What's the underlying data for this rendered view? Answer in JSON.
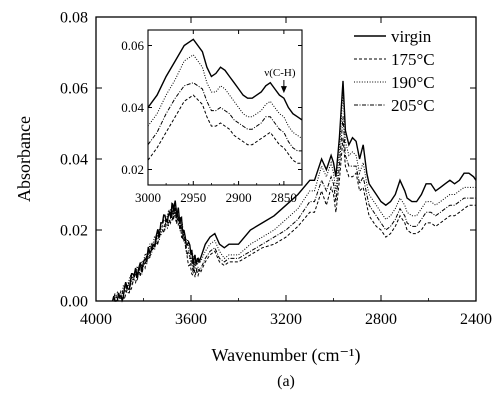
{
  "chart_data": [
    {
      "type": "line",
      "xlabel": "Wavenumber (cm⁻¹)",
      "ylabel": "Absorbance",
      "xlim": [
        4000,
        2400
      ],
      "ylim": [
        0,
        0.08
      ],
      "x_reversed": true,
      "x_ticks": [
        4000,
        3600,
        3200,
        2800,
        2400
      ],
      "y_ticks": [
        0.0,
        0.02,
        0.04,
        0.06,
        0.08
      ],
      "y_tick_labels": [
        "0.00",
        "0.02",
        "0.04",
        "0.06",
        "0.08"
      ],
      "grid": false,
      "legend_position": "top-right",
      "panel_label": "(a)",
      "series": [
        {
          "name": "virgin",
          "dash": "solid",
          "x": [
            3930,
            3900,
            3870,
            3840,
            3800,
            3760,
            3720,
            3690,
            3670,
            3650,
            3630,
            3600,
            3580,
            3560,
            3540,
            3520,
            3500,
            3480,
            3460,
            3440,
            3400,
            3350,
            3300,
            3250,
            3200,
            3150,
            3100,
            3080,
            3050,
            3030,
            3010,
            3000,
            2990,
            2975,
            2960,
            2950,
            2935,
            2920,
            2905,
            2890,
            2875,
            2860,
            2850,
            2840,
            2820,
            2800,
            2780,
            2760,
            2740,
            2720,
            2700,
            2690,
            2670,
            2650,
            2630,
            2610,
            2590,
            2570,
            2550,
            2530,
            2510,
            2490,
            2470,
            2450,
            2430,
            2410,
            2400
          ],
          "y": [
            0.0,
            0.001,
            0.004,
            0.007,
            0.011,
            0.016,
            0.022,
            0.025,
            0.027,
            0.024,
            0.02,
            0.013,
            0.011,
            0.012,
            0.016,
            0.018,
            0.019,
            0.016,
            0.015,
            0.016,
            0.016,
            0.02,
            0.022,
            0.024,
            0.027,
            0.03,
            0.034,
            0.034,
            0.04,
            0.037,
            0.041,
            0.039,
            0.035,
            0.046,
            0.062,
            0.048,
            0.044,
            0.046,
            0.045,
            0.04,
            0.044,
            0.036,
            0.033,
            0.032,
            0.03,
            0.028,
            0.027,
            0.028,
            0.03,
            0.034,
            0.031,
            0.029,
            0.028,
            0.028,
            0.03,
            0.033,
            0.033,
            0.031,
            0.032,
            0.033,
            0.034,
            0.033,
            0.034,
            0.036,
            0.036,
            0.035,
            0.034
          ]
        },
        {
          "name": "175°C",
          "dash": "dashed",
          "x": [
            3930,
            3900,
            3870,
            3840,
            3800,
            3760,
            3720,
            3690,
            3670,
            3650,
            3630,
            3600,
            3580,
            3560,
            3540,
            3520,
            3500,
            3480,
            3460,
            3440,
            3400,
            3350,
            3300,
            3250,
            3200,
            3150,
            3100,
            3080,
            3050,
            3030,
            3010,
            3000,
            2990,
            2975,
            2960,
            2950,
            2935,
            2920,
            2905,
            2890,
            2875,
            2860,
            2850,
            2840,
            2820,
            2800,
            2780,
            2760,
            2740,
            2720,
            2700,
            2690,
            2670,
            2650,
            2630,
            2610,
            2590,
            2570,
            2550,
            2530,
            2510,
            2490,
            2470,
            2450,
            2430,
            2410,
            2400
          ],
          "y": [
            0.0,
            0.001,
            0.003,
            0.006,
            0.01,
            0.015,
            0.02,
            0.023,
            0.025,
            0.022,
            0.017,
            0.009,
            0.008,
            0.008,
            0.011,
            0.013,
            0.014,
            0.011,
            0.01,
            0.011,
            0.011,
            0.013,
            0.015,
            0.016,
            0.018,
            0.021,
            0.025,
            0.025,
            0.031,
            0.027,
            0.032,
            0.03,
            0.025,
            0.034,
            0.046,
            0.038,
            0.035,
            0.035,
            0.036,
            0.031,
            0.032,
            0.027,
            0.024,
            0.023,
            0.021,
            0.02,
            0.018,
            0.019,
            0.021,
            0.024,
            0.022,
            0.02,
            0.019,
            0.019,
            0.02,
            0.022,
            0.022,
            0.021,
            0.022,
            0.023,
            0.024,
            0.024,
            0.025,
            0.026,
            0.027,
            0.027,
            0.027
          ]
        },
        {
          "name": "190°C",
          "dash": "dotted",
          "x": [
            3930,
            3900,
            3870,
            3840,
            3800,
            3760,
            3720,
            3690,
            3670,
            3650,
            3630,
            3600,
            3580,
            3560,
            3540,
            3520,
            3500,
            3480,
            3460,
            3440,
            3400,
            3350,
            3300,
            3250,
            3200,
            3150,
            3100,
            3080,
            3050,
            3030,
            3010,
            3000,
            2990,
            2975,
            2960,
            2950,
            2935,
            2920,
            2905,
            2890,
            2875,
            2860,
            2850,
            2840,
            2820,
            2800,
            2780,
            2760,
            2740,
            2720,
            2700,
            2690,
            2670,
            2650,
            2630,
            2610,
            2590,
            2570,
            2550,
            2530,
            2510,
            2490,
            2470,
            2450,
            2430,
            2410,
            2400
          ],
          "y": [
            0.0,
            0.001,
            0.004,
            0.007,
            0.011,
            0.016,
            0.021,
            0.024,
            0.026,
            0.023,
            0.019,
            0.012,
            0.011,
            0.011,
            0.014,
            0.016,
            0.017,
            0.014,
            0.012,
            0.013,
            0.013,
            0.016,
            0.018,
            0.02,
            0.023,
            0.026,
            0.031,
            0.031,
            0.038,
            0.035,
            0.039,
            0.036,
            0.031,
            0.042,
            0.059,
            0.045,
            0.041,
            0.042,
            0.041,
            0.036,
            0.039,
            0.033,
            0.03,
            0.029,
            0.027,
            0.025,
            0.023,
            0.024,
            0.026,
            0.029,
            0.027,
            0.025,
            0.024,
            0.024,
            0.026,
            0.028,
            0.028,
            0.027,
            0.028,
            0.029,
            0.03,
            0.03,
            0.031,
            0.032,
            0.032,
            0.032,
            0.032
          ]
        },
        {
          "name": "205°C",
          "dash": "dashdot",
          "x": [
            3930,
            3900,
            3870,
            3840,
            3800,
            3760,
            3720,
            3690,
            3670,
            3650,
            3630,
            3600,
            3580,
            3560,
            3540,
            3520,
            3500,
            3480,
            3460,
            3440,
            3400,
            3350,
            3300,
            3250,
            3200,
            3150,
            3100,
            3080,
            3050,
            3030,
            3010,
            3000,
            2990,
            2975,
            2960,
            2950,
            2935,
            2920,
            2905,
            2890,
            2875,
            2860,
            2850,
            2840,
            2820,
            2800,
            2780,
            2760,
            2740,
            2720,
            2700,
            2690,
            2670,
            2650,
            2630,
            2610,
            2590,
            2570,
            2550,
            2530,
            2510,
            2490,
            2470,
            2450,
            2430,
            2410,
            2400
          ],
          "y": [
            0.0,
            0.001,
            0.003,
            0.006,
            0.01,
            0.015,
            0.021,
            0.023,
            0.025,
            0.022,
            0.018,
            0.01,
            0.009,
            0.009,
            0.012,
            0.014,
            0.015,
            0.012,
            0.011,
            0.012,
            0.012,
            0.014,
            0.016,
            0.018,
            0.02,
            0.023,
            0.028,
            0.028,
            0.034,
            0.031,
            0.035,
            0.033,
            0.028,
            0.038,
            0.052,
            0.041,
            0.038,
            0.038,
            0.038,
            0.033,
            0.035,
            0.03,
            0.027,
            0.026,
            0.024,
            0.022,
            0.02,
            0.021,
            0.023,
            0.026,
            0.024,
            0.022,
            0.021,
            0.021,
            0.023,
            0.025,
            0.025,
            0.024,
            0.025,
            0.026,
            0.027,
            0.027,
            0.028,
            0.029,
            0.029,
            0.029,
            0.029
          ]
        }
      ]
    },
    {
      "type": "line",
      "inset": true,
      "xlim": [
        3000,
        2830
      ],
      "ylim": [
        0.015,
        0.065
      ],
      "x_reversed": true,
      "x_ticks": [
        3000,
        2950,
        2900,
        2850
      ],
      "y_ticks": [
        0.02,
        0.04,
        0.06
      ],
      "y_tick_labels": [
        "0.02",
        "0.04",
        "0.06"
      ],
      "annotation": {
        "text": "ν(C-H)",
        "x": 2850,
        "y": 0.044
      },
      "series": [
        {
          "name": "virgin",
          "dash": "solid",
          "x": [
            3000,
            2990,
            2980,
            2970,
            2960,
            2950,
            2940,
            2935,
            2930,
            2925,
            2920,
            2915,
            2910,
            2905,
            2900,
            2895,
            2890,
            2885,
            2880,
            2875,
            2870,
            2865,
            2860,
            2855,
            2850,
            2845,
            2840,
            2835,
            2830
          ],
          "y": [
            0.04,
            0.044,
            0.05,
            0.055,
            0.06,
            0.062,
            0.058,
            0.053,
            0.05,
            0.051,
            0.053,
            0.052,
            0.05,
            0.048,
            0.046,
            0.044,
            0.043,
            0.043,
            0.044,
            0.045,
            0.047,
            0.048,
            0.046,
            0.044,
            0.043,
            0.04,
            0.038,
            0.037,
            0.036
          ]
        },
        {
          "name": "175°C",
          "dash": "dashed",
          "x": [
            3000,
            2990,
            2980,
            2970,
            2960,
            2950,
            2940,
            2935,
            2930,
            2925,
            2920,
            2915,
            2910,
            2905,
            2900,
            2895,
            2890,
            2885,
            2880,
            2875,
            2870,
            2865,
            2860,
            2855,
            2850,
            2845,
            2840,
            2835,
            2830
          ],
          "y": [
            0.023,
            0.027,
            0.032,
            0.037,
            0.042,
            0.044,
            0.041,
            0.037,
            0.034,
            0.034,
            0.035,
            0.034,
            0.033,
            0.031,
            0.03,
            0.029,
            0.028,
            0.028,
            0.029,
            0.03,
            0.031,
            0.032,
            0.03,
            0.028,
            0.027,
            0.025,
            0.023,
            0.022,
            0.022
          ]
        },
        {
          "name": "190°C",
          "dash": "dotted",
          "x": [
            3000,
            2990,
            2980,
            2970,
            2960,
            2950,
            2940,
            2935,
            2930,
            2925,
            2920,
            2915,
            2910,
            2905,
            2900,
            2895,
            2890,
            2885,
            2880,
            2875,
            2870,
            2865,
            2860,
            2855,
            2850,
            2845,
            2840,
            2835,
            2830
          ],
          "y": [
            0.034,
            0.038,
            0.044,
            0.049,
            0.055,
            0.057,
            0.053,
            0.048,
            0.045,
            0.045,
            0.047,
            0.046,
            0.044,
            0.042,
            0.04,
            0.038,
            0.037,
            0.037,
            0.038,
            0.039,
            0.041,
            0.042,
            0.04,
            0.038,
            0.037,
            0.034,
            0.032,
            0.031,
            0.03
          ]
        },
        {
          "name": "205°C",
          "dash": "dashdot",
          "x": [
            3000,
            2990,
            2980,
            2970,
            2960,
            2950,
            2940,
            2935,
            2930,
            2925,
            2920,
            2915,
            2910,
            2905,
            2900,
            2895,
            2890,
            2885,
            2880,
            2875,
            2870,
            2865,
            2860,
            2855,
            2850,
            2845,
            2840,
            2835,
            2830
          ],
          "y": [
            0.028,
            0.032,
            0.038,
            0.043,
            0.047,
            0.048,
            0.046,
            0.042,
            0.039,
            0.039,
            0.04,
            0.039,
            0.038,
            0.036,
            0.035,
            0.034,
            0.033,
            0.033,
            0.034,
            0.035,
            0.037,
            0.037,
            0.035,
            0.033,
            0.032,
            0.029,
            0.027,
            0.026,
            0.026
          ]
        }
      ]
    }
  ]
}
